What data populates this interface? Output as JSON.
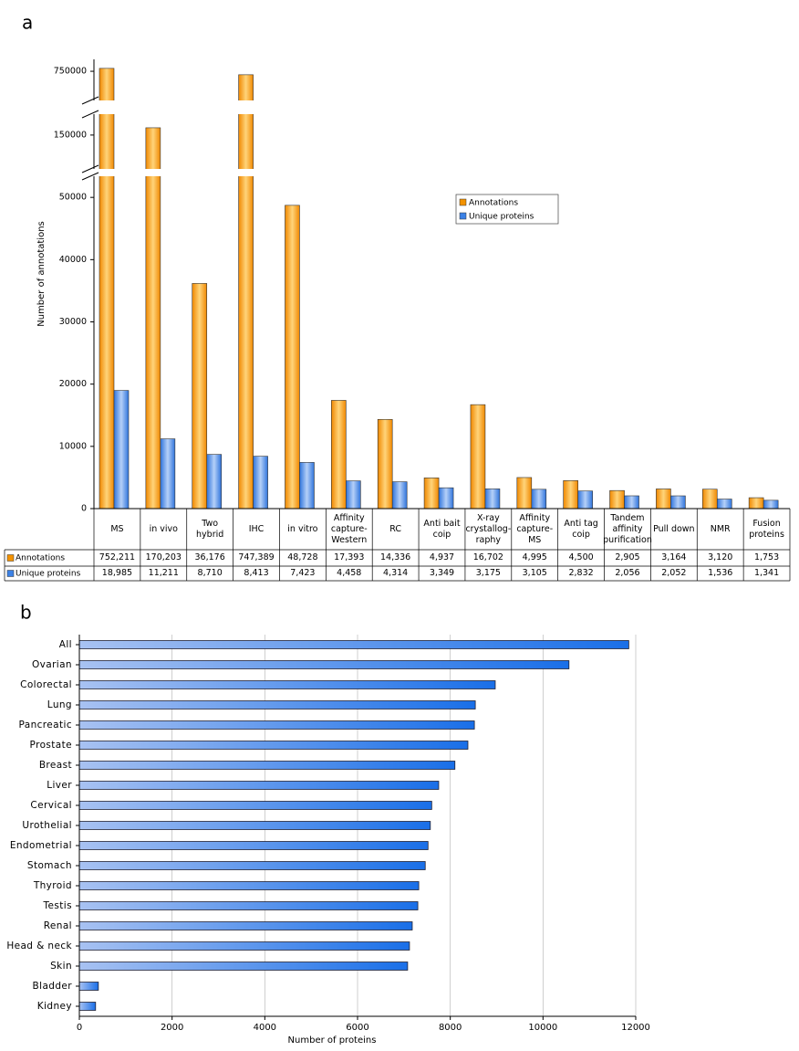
{
  "chart_data": [
    {
      "type": "bar",
      "panel": "a",
      "ylabel": "Number of annotations",
      "categories": [
        "MS",
        "in vivo",
        "Two hybrid",
        "IHC",
        "in vitro",
        "Affinity capture-Western",
        "RC",
        "Anti bait coip",
        "X-ray crystallog-raphy",
        "Affinity capture-MS",
        "Anti tag coip",
        "Tandem affinity purification",
        "Pull down",
        "NMR",
        "Fusion proteins"
      ],
      "series": [
        {
          "name": "Annotations",
          "color": "#f39200",
          "values": [
            752211,
            170203,
            36176,
            747389,
            48728,
            17393,
            14336,
            4937,
            16702,
            4995,
            4500,
            2905,
            3164,
            3120,
            1753
          ],
          "value_labels": [
            "752,211",
            "170,203",
            "36,176",
            "747,389",
            "48,728",
            "17,393",
            "14,336",
            "4,937",
            "16,702",
            "4,995",
            "4,500",
            "2,905",
            "3,164",
            "3,120",
            "1,753"
          ]
        },
        {
          "name": "Unique proteins",
          "color": "#3c82e6",
          "values": [
            18985,
            11211,
            8710,
            8413,
            7423,
            4458,
            4314,
            3349,
            3175,
            3105,
            2832,
            2056,
            2052,
            1536,
            1341
          ],
          "value_labels": [
            "18,985",
            "11,211",
            "8,710",
            "8,413",
            "7,423",
            "4,458",
            "4,314",
            "3,349",
            "3,175",
            "3,105",
            "2,832",
            "2,056",
            "2,052",
            "1,536",
            "1,341"
          ]
        }
      ],
      "y_segments": [
        [
          0,
          53400
        ],
        [
          56000,
          208000
        ],
        [
          728000,
          759000
        ]
      ],
      "yticks": [
        0,
        10000,
        20000,
        30000,
        40000,
        50000,
        150000,
        750000
      ],
      "legend": "upper right"
    },
    {
      "type": "hbar",
      "panel": "b",
      "xlabel": "Number of proteins",
      "categories": [
        "All",
        "Ovarian",
        "Colorectal",
        "Lung",
        "Pancreatic",
        "Prostate",
        "Breast",
        "Liver",
        "Cervical",
        "Urothelial",
        "Endometrial",
        "Stomach",
        "Thyroid",
        "Testis",
        "Renal",
        "Head & neck",
        "Skin",
        "Bladder",
        "Kidney"
      ],
      "values": [
        11850,
        10560,
        8970,
        8540,
        8520,
        8380,
        8100,
        7750,
        7600,
        7570,
        7520,
        7460,
        7320,
        7300,
        7180,
        7120,
        7080,
        410,
        350
      ],
      "color": "#1a6fe8",
      "xlim": [
        0,
        12000
      ],
      "xticks": [
        0,
        2000,
        4000,
        6000,
        8000,
        10000,
        12000
      ],
      "grid": true
    }
  ]
}
